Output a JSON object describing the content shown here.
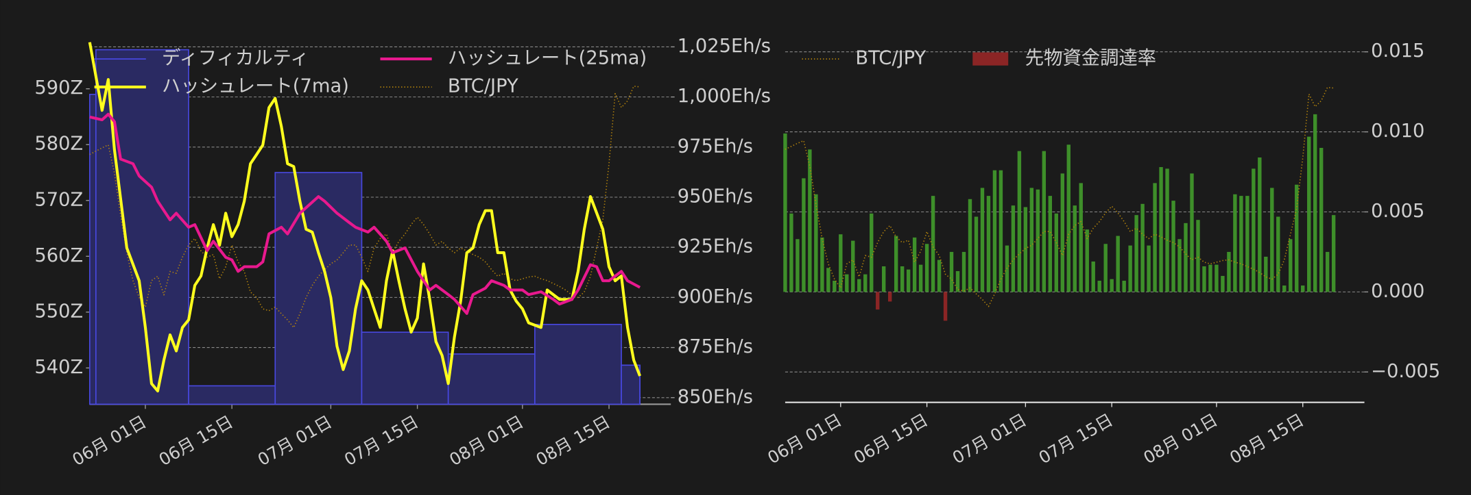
{
  "chart_data": [
    {
      "type": "combo",
      "xlim": [
        "05-23",
        "08-25"
      ],
      "xticks": [
        {
          "value": "06-01",
          "label": "06月 01日"
        },
        {
          "value": "06-15",
          "label": "06月 15日"
        },
        {
          "value": "07-01",
          "label": "07月 01日"
        },
        {
          "value": "07-15",
          "label": "07月 15日"
        },
        {
          "value": "08-01",
          "label": "08月 01日"
        },
        {
          "value": "08-15",
          "label": "08月 15日"
        }
      ],
      "ylim": [
        533.5,
        599.2
      ],
      "yticks": [
        {
          "value": 540,
          "label": "540Z"
        },
        {
          "value": 550,
          "label": "550Z"
        },
        {
          "value": 560,
          "label": "560Z"
        },
        {
          "value": 570,
          "label": "570Z"
        },
        {
          "value": 580,
          "label": "580Z"
        },
        {
          "value": 590,
          "label": "590Z"
        }
      ],
      "yaxis_position": "left",
      "y2lim": [
        846.7,
        1029.7
      ],
      "y2ticks": [
        {
          "value": 850,
          "label": "850Eh/s"
        },
        {
          "value": 875,
          "label": "875Eh/s"
        },
        {
          "value": 900,
          "label": "900Eh/s"
        },
        {
          "value": 925,
          "label": "925Eh/s"
        },
        {
          "value": 950,
          "label": "950Eh/s"
        },
        {
          "value": 975,
          "label": "975Eh/s"
        },
        {
          "value": 1000,
          "label": "1,000Eh/s"
        },
        {
          "value": 1025,
          "label": "1,025Eh/s"
        }
      ],
      "y3lim": [
        0,
        100
      ],
      "grid": "y2",
      "legend": "top-left",
      "x": [
        "05-23",
        "05-24",
        "05-25",
        "05-26",
        "05-27",
        "05-28",
        "05-29",
        "05-30",
        "05-31",
        "06-01",
        "06-02",
        "06-03",
        "06-04",
        "06-05",
        "06-06",
        "06-07",
        "06-08",
        "06-09",
        "06-10",
        "06-11",
        "06-12",
        "06-13",
        "06-14",
        "06-15",
        "06-16",
        "06-17",
        "06-18",
        "06-19",
        "06-20",
        "06-21",
        "06-22",
        "06-23",
        "06-24",
        "06-25",
        "06-26",
        "06-27",
        "06-28",
        "06-29",
        "06-30",
        "07-01",
        "07-02",
        "07-03",
        "07-04",
        "07-05",
        "07-06",
        "07-07",
        "07-08",
        "07-09",
        "07-10",
        "07-11",
        "07-12",
        "07-13",
        "07-14",
        "07-15",
        "07-16",
        "07-17",
        "07-18",
        "07-19",
        "07-20",
        "07-21",
        "07-22",
        "07-23",
        "07-24",
        "07-25",
        "07-26",
        "07-27",
        "07-28",
        "07-29",
        "07-30",
        "07-31",
        "08-01",
        "08-02",
        "08-03",
        "08-04",
        "08-05",
        "08-06",
        "08-07",
        "08-08",
        "08-09",
        "08-10",
        "08-11",
        "08-12",
        "08-13",
        "08-14",
        "08-15",
        "08-16",
        "08-17",
        "08-18",
        "08-19",
        "08-20"
      ],
      "series": [
        {
          "name": "ディフィカルティ",
          "kind": "step-area",
          "color": "#4848e0",
          "fill": "#2a2a62",
          "x": [
            "05-23",
            "05-24",
            "06-08",
            "06-22",
            "07-06",
            "07-20",
            "08-03",
            "08-17",
            "08-20"
          ],
          "values": [
            589,
            597,
            536.8,
            575,
            546.4,
            542.5,
            547.8,
            540.5,
            540.5
          ]
        },
        {
          "name": "ハッシュレート(7ma)",
          "kind": "line",
          "axis": "y2",
          "color": "#ffff1e",
          "x": [
            "05-23",
            "05-25",
            "05-26",
            "05-27",
            "05-29",
            "05-31",
            "06-01",
            "06-02",
            "06-03",
            "06-04",
            "06-05",
            "06-06",
            "06-07",
            "06-08",
            "06-09",
            "06-10",
            "06-11",
            "06-12",
            "06-13",
            "06-14",
            "06-15",
            "06-16",
            "06-17",
            "06-18",
            "06-19",
            "06-20",
            "06-21",
            "06-22",
            "06-23",
            "06-24",
            "06-25",
            "06-26",
            "06-27",
            "06-28",
            "06-29",
            "06-30",
            "07-01",
            "07-02",
            "07-03",
            "07-04",
            "07-05",
            "07-06",
            "07-07",
            "07-08",
            "07-09",
            "07-10",
            "07-11",
            "07-12",
            "07-13",
            "07-14",
            "07-15",
            "07-16",
            "07-17",
            "07-18",
            "07-19",
            "07-20",
            "07-21",
            "07-22",
            "07-23",
            "07-24",
            "07-25",
            "07-26",
            "07-27",
            "07-28",
            "07-29",
            "07-30",
            "07-31",
            "08-01",
            "08-02",
            "08-04",
            "08-05",
            "08-07",
            "08-09",
            "08-10",
            "08-11",
            "08-12",
            "08-14",
            "08-15",
            "08-16",
            "08-17",
            "08-18",
            "08-19",
            "08-20"
          ],
          "values": [
            1027.3,
            993.3,
            1008.7,
            973.7,
            924.7,
            908.3,
            885,
            857,
            853.3,
            868.7,
            881.3,
            873.3,
            885,
            888.8,
            906,
            910.7,
            924.7,
            936.3,
            926,
            942,
            930.3,
            936.3,
            948,
            966.7,
            971.3,
            976,
            994.7,
            999.3,
            985.3,
            966.7,
            965.3,
            948,
            934,
            932.6,
            922.3,
            912.9,
            899.9,
            875.7,
            864,
            873.3,
            894.3,
            908.3,
            903.7,
            894.3,
            885,
            908.3,
            923.3,
            908.3,
            894.3,
            882.7,
            889.7,
            916.7,
            899,
            878,
            871,
            857,
            880.3,
            898.1,
            922.3,
            924.7,
            936.3,
            943.3,
            943.3,
            922.3,
            922.3,
            903.7,
            898.1,
            894.3,
            887.3,
            885,
            903.7,
            899,
            899,
            913,
            934,
            950.3,
            934,
            915.3,
            908.3,
            910.7,
            885,
            868.7,
            860.8
          ]
        },
        {
          "name": "ハッシュレート(25ma)",
          "kind": "line",
          "axis": "y2",
          "color": "#e8198e",
          "x": [
            "05-23",
            "05-25",
            "05-26",
            "05-27",
            "05-28",
            "05-30",
            "05-31",
            "06-02",
            "06-03",
            "06-05",
            "06-06",
            "06-08",
            "06-09",
            "06-11",
            "06-12",
            "06-14",
            "06-15",
            "06-16",
            "06-17",
            "06-19",
            "06-20",
            "06-21",
            "06-23",
            "06-24",
            "06-26",
            "06-29",
            "06-30",
            "07-02",
            "07-04",
            "07-05",
            "07-07",
            "07-08",
            "07-10",
            "07-11",
            "07-13",
            "07-15",
            "07-17",
            "07-18",
            "07-20",
            "07-21",
            "07-23",
            "07-24",
            "07-26",
            "07-27",
            "07-29",
            "07-30",
            "08-01",
            "08-02",
            "08-04",
            "08-06",
            "08-07",
            "08-09",
            "08-10",
            "08-12",
            "08-13",
            "08-14",
            "08-15",
            "08-17",
            "08-18",
            "08-20"
          ],
          "values": [
            990,
            988.6,
            991.4,
            987.7,
            969,
            966.7,
            960.6,
            955,
            948,
            938.7,
            942,
            935,
            936.3,
            923.3,
            928,
            920,
            918.7,
            913,
            915.3,
            915.3,
            917.7,
            931.7,
            935,
            931.7,
            942,
            950.3,
            948,
            942,
            937.3,
            935,
            932.6,
            935,
            928,
            922.3,
            924.7,
            913,
            903.7,
            906,
            901.4,
            899,
            892,
            901.4,
            904.6,
            908.3,
            906,
            903.7,
            903.7,
            901.4,
            902.8,
            899,
            896.7,
            899,
            903.7,
            916.3,
            915.3,
            908.3,
            908.3,
            913,
            908.3,
            905
          ]
        },
        {
          "name": "BTC/JPY",
          "kind": "dotted",
          "axis": "y3",
          "color": "#b8860b",
          "values": [
            68.1,
            69.0,
            69.9,
            70.7,
            63.0,
            51.5,
            41.3,
            33.7,
            29.1,
            26.5,
            33.7,
            34.9,
            29.8,
            36.2,
            35.7,
            40.1,
            43.4,
            45.2,
            41.8,
            40.1,
            40.8,
            34.2,
            37.5,
            43.4,
            38.8,
            36.2,
            30.6,
            29.1,
            26.0,
            25.5,
            26.5,
            24.7,
            23.0,
            20.9,
            24.7,
            29.1,
            32.4,
            34.9,
            36.7,
            38.3,
            39.3,
            41.3,
            43.4,
            43.4,
            40.1,
            36.2,
            42.6,
            45.2,
            46.4,
            41.3,
            44.4,
            46.4,
            49.0,
            51.0,
            49.0,
            46.4,
            43.4,
            44.4,
            42.6,
            41.3,
            42.6,
            41.8,
            40.8,
            40.1,
            38.8,
            36.7,
            34.9,
            35.7,
            34.2,
            33.7,
            34.2,
            34.7,
            34.9,
            34.2,
            33.7,
            32.9,
            32.1,
            31.1,
            29.8,
            29.1,
            30.6,
            34.9,
            42.6,
            50.3,
            65.6,
            84.7,
            80.9,
            82.7,
            86.7,
            86.5
          ]
        }
      ]
    },
    {
      "type": "combo",
      "xlim": [
        "05-23",
        "08-25"
      ],
      "xticks": [
        {
          "value": "06-01",
          "label": "06月 01日"
        },
        {
          "value": "06-15",
          "label": "06月 15日"
        },
        {
          "value": "07-01",
          "label": "07月 01日"
        },
        {
          "value": "07-15",
          "label": "07月 15日"
        },
        {
          "value": "08-01",
          "label": "08月 01日"
        },
        {
          "value": "08-15",
          "label": "08月 15日"
        }
      ],
      "ylim": [
        -0.0069,
        0.0159
      ],
      "yticks": [
        {
          "value": -0.005,
          "label": "−0.005"
        },
        {
          "value": 0,
          "label": "0.000"
        },
        0.005,
        {
          "value": 0.01,
          "label": "0.010"
        },
        0.015
      ],
      "yaxis_position": "right",
      "y3lim": [
        -7.9,
        101.7
      ],
      "grid": "y",
      "legend": "top-left",
      "x": [
        "05-23",
        "05-24",
        "05-25",
        "05-26",
        "05-27",
        "05-28",
        "05-29",
        "05-30",
        "05-31",
        "06-01",
        "06-02",
        "06-03",
        "06-04",
        "06-05",
        "06-06",
        "06-07",
        "06-08",
        "06-09",
        "06-10",
        "06-11",
        "06-12",
        "06-13",
        "06-14",
        "06-15",
        "06-16",
        "06-17",
        "06-18",
        "06-19",
        "06-20",
        "06-21",
        "06-22",
        "06-23",
        "06-24",
        "06-25",
        "06-26",
        "06-27",
        "06-28",
        "06-29",
        "06-30",
        "07-01",
        "07-02",
        "07-03",
        "07-04",
        "07-05",
        "07-06",
        "07-07",
        "07-08",
        "07-09",
        "07-10",
        "07-11",
        "07-12",
        "07-13",
        "07-14",
        "07-15",
        "07-16",
        "07-17",
        "07-18",
        "07-19",
        "07-20",
        "07-21",
        "07-22",
        "07-23",
        "07-24",
        "07-25",
        "07-26",
        "07-27",
        "07-28",
        "07-29",
        "07-30",
        "07-31",
        "08-01",
        "08-02",
        "08-03",
        "08-04",
        "08-05",
        "08-06",
        "08-07",
        "08-08",
        "08-09",
        "08-10",
        "08-11",
        "08-12",
        "08-13",
        "08-14",
        "08-15",
        "08-16",
        "08-17",
        "08-18",
        "08-19",
        "08-20"
      ],
      "series": [
        {
          "name": "BTC/JPY",
          "kind": "dotted",
          "axis": "y3",
          "color": "#b8860b",
          "values": [
            68.1,
            69.0,
            69.9,
            70.7,
            63.0,
            51.5,
            41.3,
            33.7,
            29.1,
            26.5,
            33.7,
            34.9,
            29.8,
            36.2,
            35.7,
            40.1,
            43.4,
            45.2,
            41.8,
            40.1,
            40.8,
            34.2,
            37.5,
            43.4,
            38.8,
            36.2,
            30.6,
            29.1,
            26.0,
            25.5,
            26.5,
            24.7,
            23.0,
            20.9,
            24.7,
            29.1,
            32.4,
            34.9,
            36.7,
            38.3,
            39.3,
            41.3,
            43.4,
            43.4,
            40.1,
            36.2,
            42.6,
            45.2,
            46.4,
            41.3,
            44.4,
            46.4,
            49.0,
            51.0,
            49.0,
            46.4,
            43.4,
            44.4,
            42.6,
            41.3,
            42.6,
            41.8,
            40.8,
            40.1,
            38.8,
            36.7,
            34.9,
            35.7,
            34.2,
            33.7,
            34.2,
            34.7,
            34.9,
            34.2,
            33.7,
            32.9,
            32.1,
            31.1,
            29.8,
            29.1,
            30.6,
            34.9,
            42.6,
            50.3,
            65.6,
            84.7,
            80.9,
            82.7,
            86.7,
            86.5
          ]
        },
        {
          "name": "先物資金調達率",
          "kind": "bar",
          "color": "#8b2525",
          "positive_color": "#3e8f2a",
          "values": [
            0.0099,
            0.0049,
            0.0033,
            0.0071,
            0.0089,
            0.0061,
            0.0034,
            0.0015,
            0.0007,
            0.0036,
            0.0011,
            0.0032,
            0.0008,
            0.0011,
            0.0049,
            -0.0011,
            0.0016,
            -0.0006,
            0.0035,
            0.0016,
            0.0014,
            0.0034,
            0.0017,
            0.003,
            0.006,
            0.002,
            -0.0018,
            0.0025,
            0.0013,
            0.0025,
            0.0058,
            0.0047,
            0.0065,
            0.006,
            0.0076,
            0.0076,
            0.0029,
            0.0054,
            0.0088,
            0.0053,
            0.0065,
            0.0064,
            0.0088,
            0.006,
            0.0049,
            0.0074,
            0.0092,
            0.0054,
            0.0068,
            0.0039,
            0.0019,
            0.0007,
            0.003,
            0.0008,
            0.0035,
            0.0007,
            0.0029,
            0.0048,
            0.0055,
            0.0029,
            0.0068,
            0.0078,
            0.0077,
            0.0057,
            0.0033,
            0.0043,
            0.0074,
            0.0045,
            0.0016,
            0.0017,
            0.0017,
            0.001,
            0.0025,
            0.0061,
            0.006,
            0.006,
            0.0077,
            0.0084,
            0.0022,
            0.0065,
            0.0047,
            0.0004,
            0.0033,
            0.0067,
            0.0004,
            0.0097,
            0.0111,
            0.009,
            0.0025,
            0.0048
          ]
        }
      ]
    }
  ]
}
